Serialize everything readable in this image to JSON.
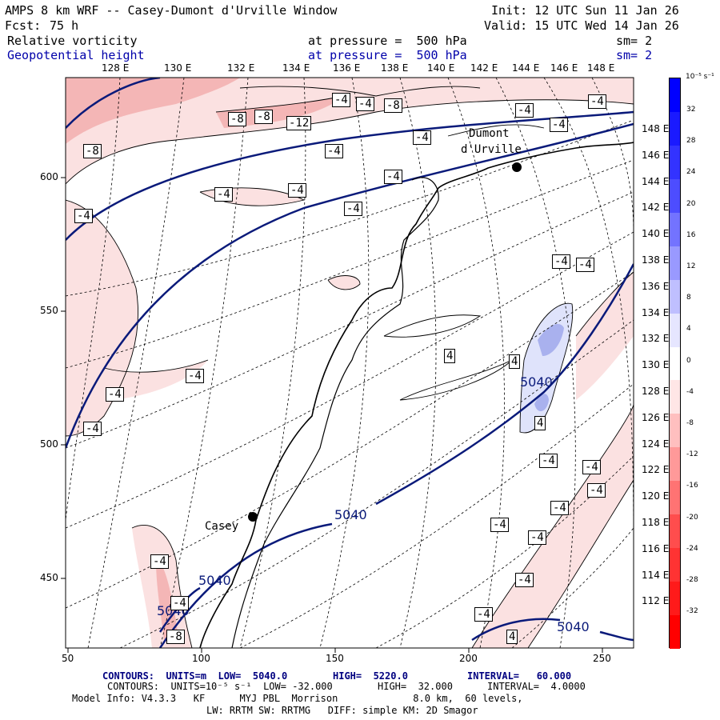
{
  "header": {
    "title": "AMPS 8 km WRF -- Casey-Dumont d'Urville Window",
    "init": "Init: 12 UTC Sun 11 Jan 26",
    "fcst_label": "Fcst:",
    "fcst_value": "75 h",
    "valid": "Valid: 15 UTC Wed 14 Jan 26",
    "field1_name": "Relative vorticity",
    "field1_level": "at pressure =  500 hPa",
    "field1_sm": "sm= 2",
    "field2_name": "Geopotential height",
    "field2_level": "at pressure =  500 hPa",
    "field2_sm": "sm= 2"
  },
  "map": {
    "top_lon_labels": [
      "128 E",
      "130 E",
      "132 E",
      "134 E",
      "136 E",
      "138 E",
      "140 E",
      "142 E",
      "144 E",
      "146 E",
      "148 E"
    ],
    "right_lon_labels": [
      "148 E",
      "146 E",
      "144 E",
      "142 E",
      "140 E",
      "138 E",
      "136 E",
      "134 E",
      "132 E",
      "130 E",
      "128 E",
      "126 E",
      "124 E",
      "122 E",
      "120 E",
      "118 E",
      "116 E",
      "114 E",
      "112 E"
    ],
    "y_ticks": [
      "600",
      "550",
      "500",
      "450"
    ],
    "x_ticks": [
      "50",
      "100",
      "150",
      "200",
      "250"
    ],
    "station1": "Casey",
    "station2_line1": "Dumont",
    "station2_line2": "d'Urville",
    "height_contour_label": "5040",
    "vort_labels": [
      "-4",
      "-8",
      "-12",
      "4",
      "-4?"
    ],
    "colors": {
      "height_contour": "#0a1a7a",
      "land_line": "#000000",
      "neg_fill_light": "#fbe1e1",
      "neg_fill_mid": "#f4b6b6",
      "pos_fill_light": "#dfe3fb",
      "pos_fill_mid": "#a9b1ee"
    }
  },
  "colorbar": {
    "unit": "10⁻⁵ s⁻¹",
    "labels": [
      "32",
      "28",
      "24",
      "20",
      "16",
      "12",
      "8",
      "4",
      "0",
      "-4",
      "-8",
      "-12",
      "-16",
      "-20",
      "-24",
      "-28",
      "-32"
    ],
    "colors": [
      "#0000ff",
      "#1a1aff",
      "#3333ff",
      "#4d4dff",
      "#7373ff",
      "#9999ff",
      "#bfbfff",
      "#e6e6ff",
      "#ffffff",
      "#ffe6e6",
      "#ffbfbf",
      "#ff9999",
      "#ff7373",
      "#ff4d4d",
      "#ff3333",
      "#ff1a1a",
      "#ff0000"
    ]
  },
  "footer": {
    "line1_a": "CONTOURS:  UNITS=m  LOW=  5040.0",
    "line1_b": "HIGH=  5220.0",
    "line1_c": "INTERVAL=   60.000",
    "line2_a": "CONTOURS:  UNITS=10⁻⁵ s⁻¹  LOW= -32.000",
    "line2_b": "HIGH=  32.000",
    "line2_c": "INTERVAL=  4.0000",
    "line3": "Model Info: V4.3.3   KF      MYJ PBL  Morrison             8.0 km,  60 levels,",
    "line4": "LW: RRTM SW: RRTMG   DIFF: simple KM: 2D Smagor"
  }
}
